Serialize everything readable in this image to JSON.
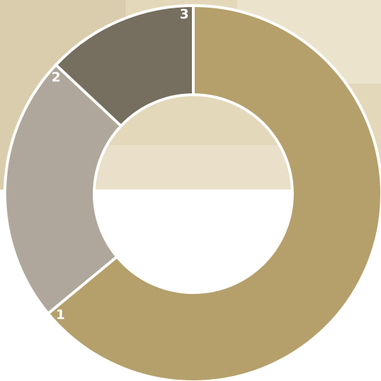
{
  "chart_data": {
    "type": "pie",
    "variant": "donut",
    "start_angle_deg": 0,
    "direction": "clockwise",
    "slices": [
      {
        "label": "1",
        "value": 64,
        "color": "#B5A06C"
      },
      {
        "label": "2",
        "value": 23,
        "color": "#AFA79B"
      },
      {
        "label": "3",
        "value": 13,
        "color": "#766E5E"
      }
    ],
    "background_photo_colors": {
      "base": "#E4D8BB",
      "light": "#EEE6D2",
      "shade": "#D4C7A4"
    },
    "separator_color": "#FFFFFF"
  }
}
